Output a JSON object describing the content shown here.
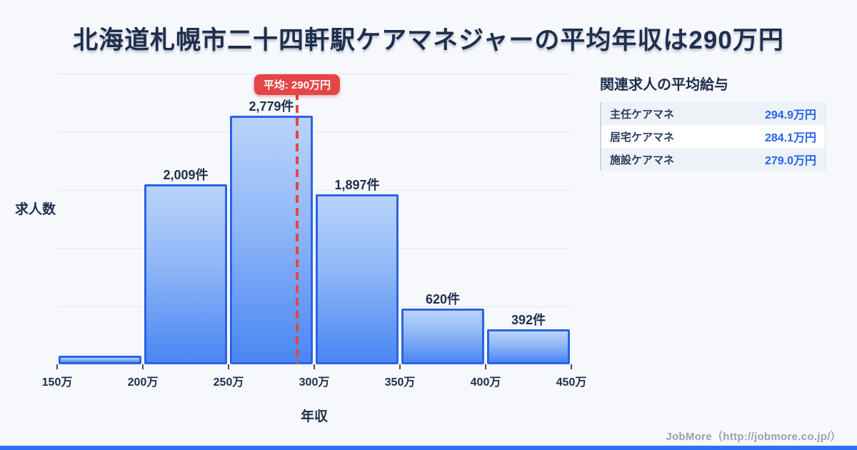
{
  "title": "北海道札幌市二十四軒駅ケアマネジャーの平均年収は290万円",
  "chart_data": {
    "type": "bar",
    "subtype": "histogram",
    "xlabel": "年収",
    "ylabel": "求人数",
    "xlim": [
      150,
      450
    ],
    "ylim": [
      0,
      3250
    ],
    "grid": true,
    "x_tick_labels": [
      "150万",
      "200万",
      "250万",
      "300万",
      "350万",
      "400万",
      "450万"
    ],
    "bin_edges": [
      150,
      200,
      250,
      300,
      350,
      400,
      450
    ],
    "values": [
      96,
      2009,
      2779,
      1897,
      620,
      392
    ],
    "bar_labels": [
      null,
      "2,009件",
      "2,779件",
      "1,897件",
      "620件",
      "392件"
    ],
    "average": {
      "value": 290,
      "label": "平均: 290万円"
    }
  },
  "panel": {
    "title": "関連求人の平均給与",
    "rows": [
      {
        "label": "主任ケアマネ",
        "value": "294.9万円"
      },
      {
        "label": "居宅ケアマネ",
        "value": "284.1万円"
      },
      {
        "label": "施設ケアマネ",
        "value": "279.0万円"
      }
    ]
  },
  "footer": {
    "credit": "JobMore（http://jobmore.co.jp/）"
  },
  "colors": {
    "background": "#f6f8fc",
    "navy_text": "#1f2e4d",
    "bar_border": "#2b63e4",
    "bar_gradient_top": "#b9d4fa",
    "bar_gradient_bottom": "#4a86f3",
    "average_red": "#e64540",
    "value_blue": "#2563eb",
    "row_alt_background": "#edf2f9",
    "footer_gray": "#9aa1ab",
    "bottom_bar_blue": "#2f6ff2"
  }
}
